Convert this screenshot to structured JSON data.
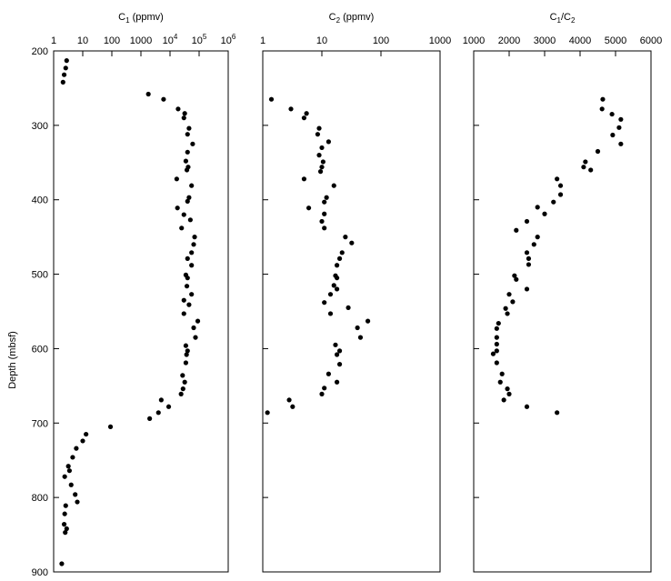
{
  "figure": {
    "ylabel": "Depth (mbsf)",
    "y_ticks": [
      200,
      300,
      400,
      500,
      600,
      700,
      800,
      900
    ],
    "ylim": [
      200,
      900
    ]
  },
  "chart_data": [
    {
      "type": "scatter",
      "title_parts": [
        "C",
        "1",
        " (ppmv)"
      ],
      "xscale": "log",
      "xlim": [
        1,
        1000000
      ],
      "x_ticks": [
        {
          "value": 1,
          "base": "1",
          "exp": ""
        },
        {
          "value": 10,
          "base": "10",
          "exp": ""
        },
        {
          "value": 100,
          "base": "100",
          "exp": ""
        },
        {
          "value": 1000,
          "base": "1000",
          "exp": ""
        },
        {
          "value": 10000,
          "base": "10",
          "exp": "4"
        },
        {
          "value": 100000,
          "base": "10",
          "exp": "5"
        },
        {
          "value": 1000000,
          "base": "10",
          "exp": "6"
        }
      ],
      "ylabel": "Depth (mbsf)",
      "ylim": [
        200,
        900
      ],
      "points": [
        [
          2.8,
          213
        ],
        [
          2.6,
          223
        ],
        [
          2.3,
          232
        ],
        [
          2.1,
          242
        ],
        [
          1800,
          258
        ],
        [
          6000,
          265
        ],
        [
          19000,
          278
        ],
        [
          32000,
          284
        ],
        [
          30000,
          290
        ],
        [
          45000,
          304
        ],
        [
          40000,
          312
        ],
        [
          60000,
          325
        ],
        [
          40000,
          336
        ],
        [
          35000,
          348
        ],
        [
          42000,
          356
        ],
        [
          38000,
          360
        ],
        [
          17000,
          372
        ],
        [
          55000,
          381
        ],
        [
          45000,
          397
        ],
        [
          40000,
          402
        ],
        [
          18000,
          411
        ],
        [
          30000,
          420
        ],
        [
          50000,
          427
        ],
        [
          25000,
          438
        ],
        [
          70000,
          450
        ],
        [
          65000,
          460
        ],
        [
          55000,
          471
        ],
        [
          40000,
          479
        ],
        [
          55000,
          488
        ],
        [
          35000,
          501
        ],
        [
          40000,
          505
        ],
        [
          38000,
          516
        ],
        [
          55000,
          527
        ],
        [
          30000,
          535
        ],
        [
          45000,
          541
        ],
        [
          30000,
          553
        ],
        [
          90000,
          563
        ],
        [
          65000,
          572
        ],
        [
          75000,
          585
        ],
        [
          35000,
          596
        ],
        [
          40000,
          603
        ],
        [
          37000,
          608
        ],
        [
          35000,
          619
        ],
        [
          27000,
          636
        ],
        [
          32000,
          645
        ],
        [
          28000,
          654
        ],
        [
          24000,
          661
        ],
        [
          5000,
          669
        ],
        [
          9000,
          678
        ],
        [
          4000,
          686
        ],
        [
          2000,
          694
        ],
        [
          90,
          705
        ],
        [
          13,
          715
        ],
        [
          10,
          724
        ],
        [
          6,
          734
        ],
        [
          4.5,
          746
        ],
        [
          3.2,
          758
        ],
        [
          3.5,
          764
        ],
        [
          2.4,
          772
        ],
        [
          4,
          783
        ],
        [
          5.5,
          796
        ],
        [
          6.5,
          806
        ],
        [
          2.6,
          811
        ],
        [
          2.4,
          822
        ],
        [
          2.3,
          836
        ],
        [
          2.8,
          842
        ],
        [
          2.5,
          847
        ],
        [
          1.9,
          889
        ]
      ]
    },
    {
      "type": "scatter",
      "title_parts": [
        "C",
        "2",
        " (ppmv)"
      ],
      "xscale": "log",
      "xlim": [
        1,
        1000
      ],
      "x_ticks": [
        {
          "value": 1,
          "base": "1",
          "exp": ""
        },
        {
          "value": 10,
          "base": "10",
          "exp": ""
        },
        {
          "value": 100,
          "base": "100",
          "exp": ""
        },
        {
          "value": 1000,
          "base": "1000",
          "exp": ""
        }
      ],
      "ylabel": "Depth (mbsf)",
      "ylim": [
        200,
        900
      ],
      "points": [
        [
          1.4,
          265
        ],
        [
          3.0,
          278
        ],
        [
          5.5,
          284
        ],
        [
          5.0,
          290
        ],
        [
          9.0,
          304
        ],
        [
          8.5,
          312
        ],
        [
          13,
          322
        ],
        [
          10,
          330
        ],
        [
          9.0,
          340
        ],
        [
          10.5,
          349
        ],
        [
          10,
          356
        ],
        [
          9.5,
          362
        ],
        [
          5.0,
          372
        ],
        [
          16,
          381
        ],
        [
          12,
          397
        ],
        [
          11,
          403
        ],
        [
          6.0,
          411
        ],
        [
          11,
          419
        ],
        [
          10,
          429
        ],
        [
          11,
          438
        ],
        [
          25,
          450
        ],
        [
          32,
          458
        ],
        [
          22,
          471
        ],
        [
          20,
          479
        ],
        [
          18,
          488
        ],
        [
          17,
          502
        ],
        [
          18,
          505
        ],
        [
          16,
          515
        ],
        [
          18,
          520
        ],
        [
          14,
          527
        ],
        [
          11,
          538
        ],
        [
          28,
          545
        ],
        [
          14,
          553
        ],
        [
          60,
          563
        ],
        [
          40,
          572
        ],
        [
          45,
          585
        ],
        [
          17,
          595
        ],
        [
          20,
          603
        ],
        [
          18,
          608
        ],
        [
          20,
          621
        ],
        [
          13,
          634
        ],
        [
          18,
          645
        ],
        [
          11,
          653
        ],
        [
          10,
          661
        ],
        [
          2.8,
          669
        ],
        [
          3.2,
          678
        ],
        [
          1.2,
          686
        ]
      ]
    },
    {
      "type": "scatter",
      "title_parts": [
        "C",
        "1",
        "/C",
        "2",
        ""
      ],
      "xscale": "linear",
      "xlim": [
        1000,
        6000
      ],
      "x_ticks": [
        {
          "value": 1000,
          "base": "1000",
          "exp": ""
        },
        {
          "value": 2000,
          "base": "2000",
          "exp": ""
        },
        {
          "value": 3000,
          "base": "3000",
          "exp": ""
        },
        {
          "value": 4000,
          "base": "4000",
          "exp": ""
        },
        {
          "value": 5000,
          "base": "5000",
          "exp": ""
        },
        {
          "value": 6000,
          "base": "6000",
          "exp": ""
        }
      ],
      "ylabel": "Depth (mbsf)",
      "ylim": [
        200,
        900
      ],
      "points": [
        [
          4640,
          265
        ],
        [
          4620,
          278
        ],
        [
          4900,
          285
        ],
        [
          5150,
          292
        ],
        [
          5100,
          303
        ],
        [
          4920,
          313
        ],
        [
          5150,
          325
        ],
        [
          4500,
          335
        ],
        [
          4150,
          349
        ],
        [
          4100,
          356
        ],
        [
          4300,
          360
        ],
        [
          3350,
          372
        ],
        [
          3450,
          381
        ],
        [
          3450,
          393
        ],
        [
          3250,
          403
        ],
        [
          2800,
          410
        ],
        [
          3000,
          419
        ],
        [
          2500,
          429
        ],
        [
          2200,
          441
        ],
        [
          2800,
          450
        ],
        [
          2700,
          460
        ],
        [
          2500,
          471
        ],
        [
          2550,
          479
        ],
        [
          2550,
          487
        ],
        [
          2150,
          502
        ],
        [
          2200,
          507
        ],
        [
          2500,
          520
        ],
        [
          2000,
          527
        ],
        [
          2100,
          537
        ],
        [
          1900,
          546
        ],
        [
          1950,
          553
        ],
        [
          1700,
          566
        ],
        [
          1650,
          573
        ],
        [
          1650,
          585
        ],
        [
          1650,
          594
        ],
        [
          1550,
          607
        ],
        [
          1650,
          603
        ],
        [
          1650,
          619
        ],
        [
          1800,
          634
        ],
        [
          1750,
          645
        ],
        [
          1950,
          654
        ],
        [
          2000,
          661
        ],
        [
          1850,
          669
        ],
        [
          2500,
          678
        ],
        [
          3350,
          686
        ]
      ]
    }
  ]
}
